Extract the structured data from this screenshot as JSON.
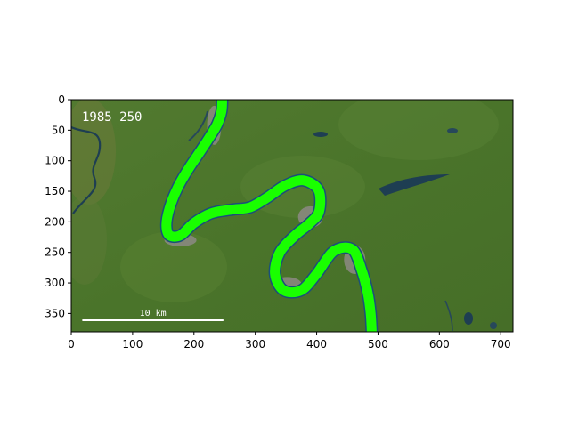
{
  "image": {
    "title": "",
    "overlay_text": "1985  250",
    "scale_bar_label": "10 km",
    "x_extent": [
      0,
      720
    ],
    "y_extent": [
      380,
      0
    ],
    "x_ticks": [
      0,
      100,
      200,
      300,
      400,
      500,
      600,
      700
    ],
    "y_ticks": [
      0,
      50,
      100,
      150,
      200,
      250,
      300,
      350
    ],
    "scale_bar": {
      "x0": 18,
      "x1": 248,
      "y": 361
    },
    "colors": {
      "forest": "#4f7a2c",
      "forest_dark": "#3c6424",
      "river_mask": "#19ff00",
      "river_outline": "#1a4f7a",
      "sandbar": "#8c8a84",
      "water_dark": "#1e3e52",
      "scale_bar": "#ffffff"
    },
    "river_centerline": [
      [
        246,
        -5
      ],
      [
        245,
        18
      ],
      [
        238,
        40
      ],
      [
        225,
        62
      ],
      [
        208,
        88
      ],
      [
        190,
        115
      ],
      [
        173,
        145
      ],
      [
        160,
        178
      ],
      [
        155,
        205
      ],
      [
        160,
        222
      ],
      [
        178,
        222
      ],
      [
        200,
        202
      ],
      [
        228,
        186
      ],
      [
        262,
        180
      ],
      [
        292,
        176
      ],
      [
        320,
        160
      ],
      [
        348,
        141
      ],
      [
        378,
        132
      ],
      [
        403,
        148
      ],
      [
        404,
        183
      ],
      [
        388,
        203
      ],
      [
        365,
        222
      ],
      [
        340,
        250
      ],
      [
        332,
        285
      ],
      [
        346,
        312
      ],
      [
        375,
        312
      ],
      [
        400,
        285
      ],
      [
        428,
        248
      ],
      [
        458,
        245
      ],
      [
        473,
        278
      ],
      [
        483,
        315
      ],
      [
        488,
        350
      ],
      [
        490,
        385
      ]
    ]
  }
}
